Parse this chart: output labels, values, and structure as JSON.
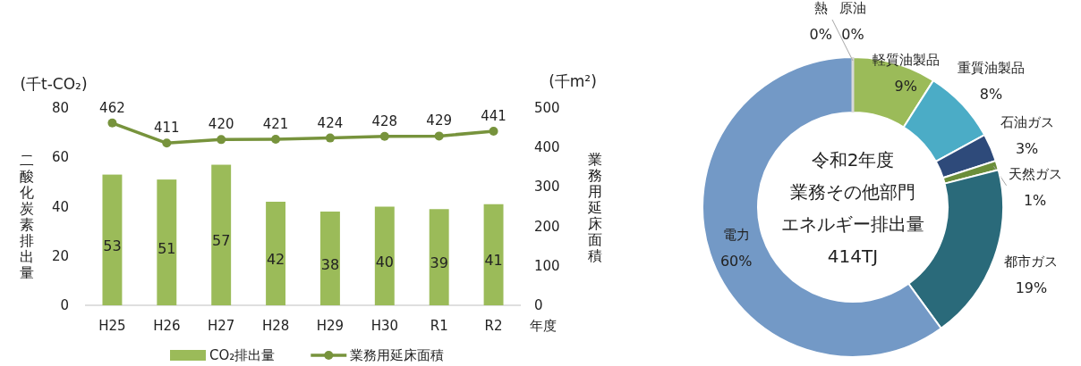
{
  "chart_data": [
    {
      "type": "bar",
      "categories": [
        "H25",
        "H26",
        "H27",
        "H28",
        "H29",
        "H30",
        "R1",
        "R2"
      ],
      "xlabel": "年度",
      "ylabel": "二酸化炭素排出量",
      "y2label": "業務用延床面積",
      "annotations": [
        "(千t-CO₂)",
        "(千m²)"
      ],
      "series": [
        {
          "name": "CO₂排出量",
          "type": "bar",
          "color": "#9bbb59",
          "values": [
            53,
            51,
            57,
            42,
            38,
            40,
            39,
            41
          ]
        },
        {
          "name": "業務用延床面積",
          "type": "line",
          "axis": "y2",
          "color": "#77933c",
          "marker": "circle",
          "values": [
            462,
            411,
            420,
            421,
            424,
            428,
            429,
            441
          ]
        }
      ],
      "ylim": [
        0,
        80
      ],
      "yticks": [
        0,
        20,
        40,
        60,
        80
      ],
      "y2lim": [
        0,
        500
      ],
      "y2ticks": [
        0,
        100,
        200,
        300,
        400,
        500
      ],
      "data_labels": true,
      "legend": "bottom"
    },
    {
      "type": "donut",
      "categories": [
        "原油",
        "軽質油製品",
        "重質油製品",
        "石油ガス",
        "天然ガス",
        "都市ガス",
        "電力",
        "熱"
      ],
      "values": [
        0,
        9,
        8,
        3,
        1,
        19,
        60,
        0
      ],
      "colors": [
        "#f2f2e6",
        "#9bbb59",
        "#4bacc6",
        "#2e4a7a",
        "#6b8e3a",
        "#2a6a7a",
        "#7399c6",
        "#d9d9d9"
      ],
      "value_labels": [
        "0%",
        "9%",
        "8%",
        "3%",
        "1%",
        "19%",
        "60%",
        "0%"
      ],
      "annotations": [
        "令和2年度",
        "業務その他部門",
        "エネルギー排出量",
        "414TJ"
      ]
    }
  ]
}
